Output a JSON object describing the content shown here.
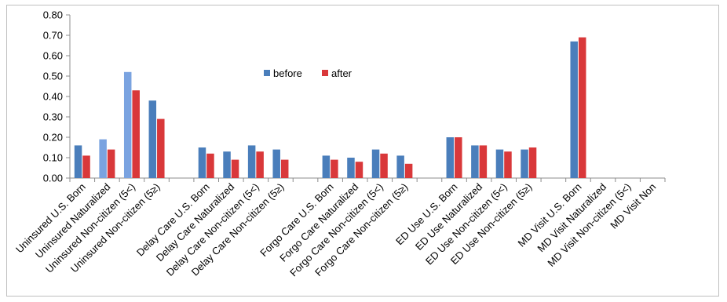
{
  "chart_data": {
    "type": "bar",
    "categories": [
      "Uninsured U.S. Born",
      "Uninsured Naturalized",
      "Uninsured Non-citizen (5<)",
      "Uninsured Non-citizen (5≥)",
      "",
      "Delay Care U.S. Born",
      "Delay Care Naturalized",
      "Delay Care Non-citizen (5<)",
      "Delay Care Non-citizen (5≥)",
      "",
      "Forgo Care U.S. Born",
      "Forgo Care Naturalized",
      "Forgo Care Non-citizen (5<)",
      "Forgo Care Non-citizen (5≥)",
      "",
      "ED Use U.S. Born",
      "ED Use Naturalized",
      "ED Use Non-citizen (5<)",
      "ED Use Non-citizen (5≥)",
      "",
      "MD Visit U.S. Born",
      "MD Visit Naturalized",
      "MD Visit Non-citizen (5<)",
      "MD Visit Non"
    ],
    "series": [
      {
        "name": "before",
        "color": "#4a7ebb",
        "values": [
          0.16,
          0.19,
          0.52,
          0.38,
          null,
          0.15,
          0.13,
          0.16,
          0.14,
          null,
          0.11,
          0.1,
          0.14,
          0.11,
          null,
          0.2,
          0.16,
          0.14,
          0.14,
          null,
          0.67,
          null,
          null,
          null
        ]
      },
      {
        "name": "after",
        "color": "#d9383a",
        "values": [
          0.11,
          0.14,
          0.43,
          0.29,
          null,
          0.12,
          0.09,
          0.13,
          0.09,
          null,
          0.09,
          0.08,
          0.12,
          0.07,
          null,
          0.2,
          0.16,
          0.13,
          0.15,
          null,
          0.69,
          null,
          null,
          null
        ]
      }
    ],
    "highlight_color": "#7aa3e0",
    "highlighted_bars": [
      {
        "series": 0,
        "index": 1
      },
      {
        "series": 0,
        "index": 2
      }
    ],
    "yticks": [
      "0.00",
      "0.10",
      "0.20",
      "0.30",
      "0.40",
      "0.50",
      "0.60",
      "0.70",
      "0.80"
    ],
    "ylim": [
      0,
      0.8
    ],
    "grid": false,
    "legend_position": "top-center",
    "title": "",
    "xlabel": "",
    "ylabel": ""
  }
}
